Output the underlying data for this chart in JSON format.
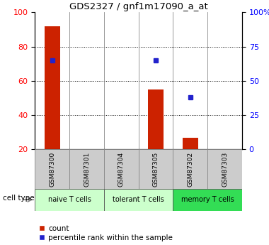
{
  "title": "GDS2327 / gnf1m17090_a_at",
  "samples": [
    "GSM87300",
    "GSM87301",
    "GSM87304",
    "GSM87305",
    "GSM87302",
    "GSM87303"
  ],
  "count_values": [
    92,
    null,
    null,
    55,
    27,
    null
  ],
  "percentile_values": [
    65,
    null,
    null,
    65,
    38,
    null
  ],
  "ylim_left": [
    20,
    100
  ],
  "ylim_right": [
    0,
    100
  ],
  "yticks_left": [
    20,
    40,
    60,
    80,
    100
  ],
  "yticks_right": [
    0,
    25,
    50,
    75,
    100
  ],
  "yticklabels_right": [
    "0",
    "25",
    "50",
    "75",
    "100%"
  ],
  "bar_color": "#cc2200",
  "dot_color": "#2222cc",
  "group_info": [
    {
      "label": "naive T cells",
      "xstart": 0,
      "xend": 1,
      "color": "#ccffcc"
    },
    {
      "label": "tolerant T cells",
      "xstart": 2,
      "xend": 3,
      "color": "#ccffcc"
    },
    {
      "label": "memory T cells",
      "xstart": 4,
      "xend": 5,
      "color": "#33dd55"
    }
  ],
  "cell_type_label": "cell type",
  "legend_count_label": "count",
  "legend_pct_label": "percentile rank within the sample",
  "grid_yticks": [
    40,
    60,
    80
  ],
  "bar_width": 0.45,
  "sample_box_color": "#cccccc",
  "sample_box_edge": "#888888",
  "figure_bg": "#ffffff"
}
